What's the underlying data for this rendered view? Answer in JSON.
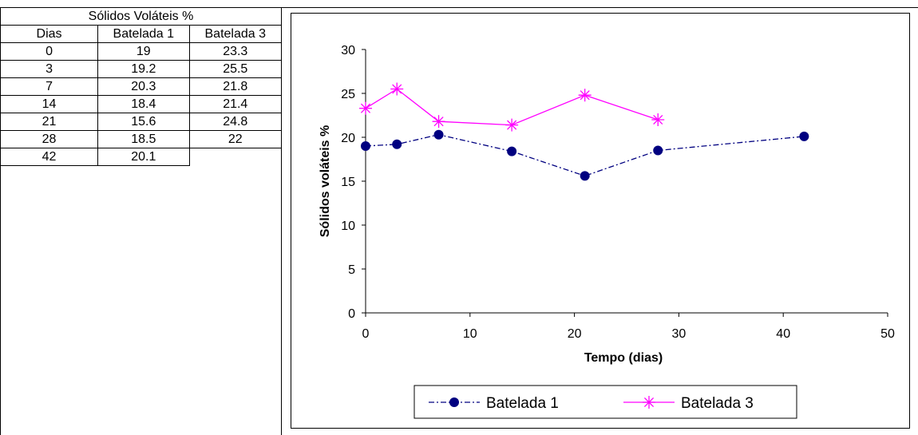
{
  "table": {
    "title": "Sólidos Voláteis %",
    "headers": [
      "Dias",
      "Batelada 1",
      "Batelada 3"
    ],
    "rows": [
      [
        "0",
        "19",
        "23.3"
      ],
      [
        "3",
        "19.2",
        "25.5"
      ],
      [
        "7",
        "20.3",
        "21.8"
      ],
      [
        "14",
        "18.4",
        "21.4"
      ],
      [
        "21",
        "15.6",
        "24.8"
      ],
      [
        "28",
        "18.5",
        "22"
      ],
      [
        "42",
        "20.1",
        ""
      ]
    ]
  },
  "chart_data": {
    "type": "line",
    "xlabel": "Tempo (dias)",
    "ylabel": "Sólidos voláteis %",
    "xlim": [
      0,
      50
    ],
    "ylim": [
      0,
      30
    ],
    "xticks": [
      0,
      10,
      20,
      30,
      40,
      50
    ],
    "yticks": [
      0,
      5,
      10,
      15,
      20,
      25,
      30
    ],
    "grid": false,
    "legend_position": "bottom",
    "series": [
      {
        "name": "Batelada 1",
        "color": "#000080",
        "marker": "circle",
        "line_style": "dash-dot",
        "x": [
          0,
          3,
          7,
          14,
          21,
          28,
          42
        ],
        "y": [
          19,
          19.2,
          20.3,
          18.4,
          15.6,
          18.5,
          20.1
        ]
      },
      {
        "name": "Batelada 3",
        "color": "#FF00FF",
        "marker": "asterisk",
        "line_style": "solid",
        "x": [
          0,
          3,
          7,
          14,
          21,
          28
        ],
        "y": [
          23.3,
          25.5,
          21.8,
          21.4,
          24.8,
          22
        ]
      }
    ]
  }
}
